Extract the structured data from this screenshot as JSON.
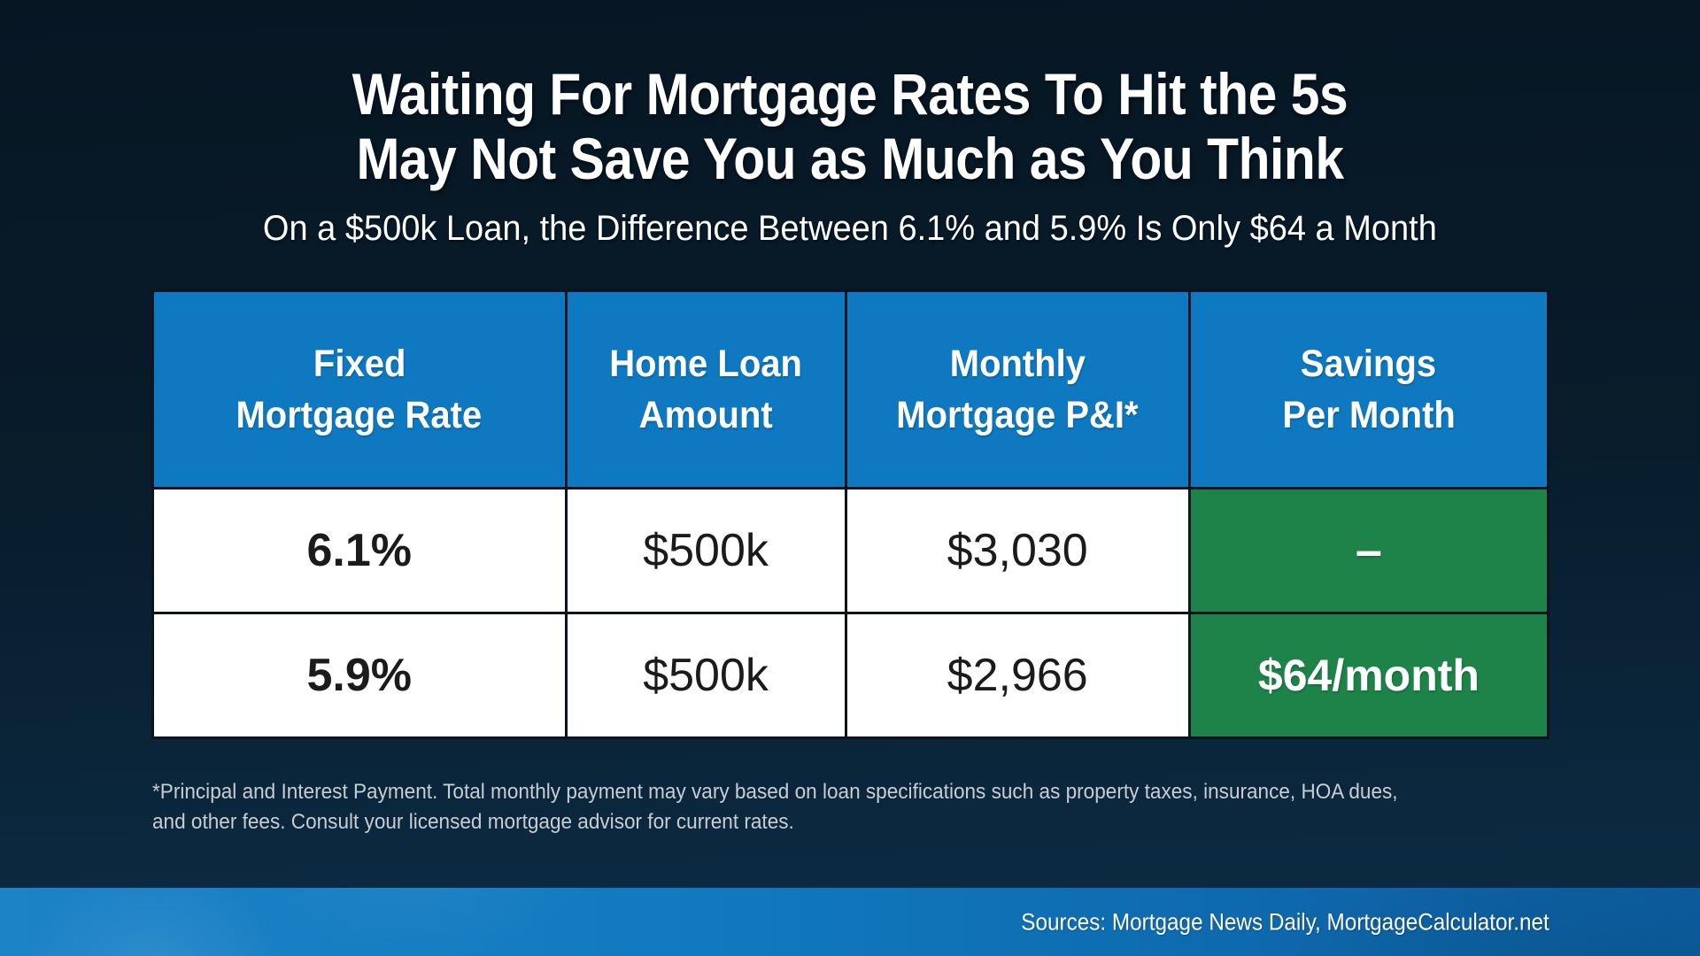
{
  "header": {
    "title_line1": "Waiting For Mortgage Rates To Hit the 5s",
    "title_line2": "May Not Save You as Much as You Think",
    "subtitle": "On a $500k Loan, the Difference Between 6.1% and 5.9% Is Only $64 a Month"
  },
  "table": {
    "headers": [
      {
        "line1": "Fixed",
        "line2": "Mortgage Rate"
      },
      {
        "line1": "Home Loan",
        "line2": "Amount"
      },
      {
        "line1": "Monthly",
        "line2": "Mortgage P&I*"
      },
      {
        "line1": "Savings",
        "line2": "Per Month"
      }
    ],
    "rows": [
      {
        "rate": "6.1%",
        "loan": "$500k",
        "payment": "$3,030",
        "savings": "–"
      },
      {
        "rate": "5.9%",
        "loan": "$500k",
        "payment": "$2,966",
        "savings": "$64/month"
      }
    ]
  },
  "footnote": {
    "line1": "*Principal and Interest Payment. Total monthly payment may vary based on loan specifications such as property taxes, insurance, HOA dues,",
    "line2": "and other fees. Consult your licensed mortgage advisor for current rates."
  },
  "footer": {
    "sources": "Sources: Mortgage News Daily, MortgageCalculator.net"
  },
  "colors": {
    "header_blue": "#0e79c1",
    "savings_green": "#1e8349",
    "border_dark": "#0c1420",
    "background_top": "#071623",
    "background_bottom": "#0c2c42",
    "footer_bar_left": "#1d83c7",
    "footer_bar_right": "#0c5c9e",
    "cell_white": "#ffffff",
    "footnote_gray": "#c7cdd3"
  },
  "chart_data": {
    "type": "table",
    "title": "Waiting For Mortgage Rates To Hit the 5s May Not Save You as Much as You Think",
    "subtitle": "On a $500k Loan, the Difference Between 6.1% and 5.9% Is Only $64 a Month",
    "columns": [
      "Fixed Mortgage Rate",
      "Home Loan Amount",
      "Monthly Mortgage P&I*",
      "Savings Per Month"
    ],
    "rows": [
      [
        "6.1%",
        "$500k",
        "$3,030",
        "–"
      ],
      [
        "5.9%",
        "$500k",
        "$2,966",
        "$64/month"
      ]
    ],
    "source": "Sources: Mortgage News Daily, MortgageCalculator.net"
  }
}
